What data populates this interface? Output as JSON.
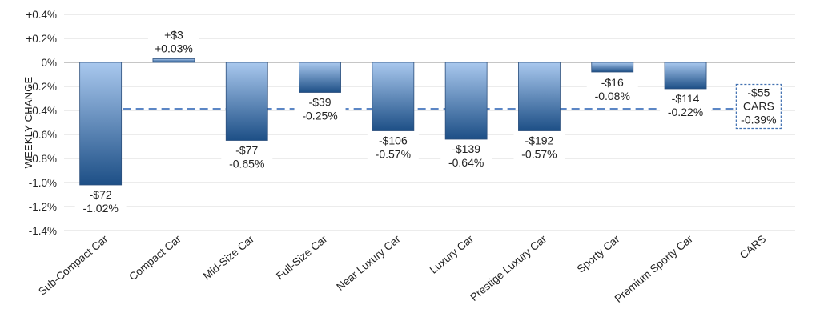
{
  "chart_data": {
    "type": "bar",
    "title": "",
    "xlabel": "",
    "ylabel": "WEEKLY CHANGE",
    "ylim": [
      -1.4,
      0.4
    ],
    "yticks": [
      0.4,
      0.2,
      0,
      -0.2,
      -0.4,
      -0.6,
      -0.8,
      -1.0,
      -1.2,
      -1.4
    ],
    "ytick_labels": [
      "+0.4%",
      "+0.2%",
      "0%",
      "-0.2%",
      "-0.4%",
      "-0.6%",
      "-0.8%",
      "-1.0%",
      "-1.2%",
      "-1.4%"
    ],
    "grid": true,
    "categories": [
      "Sub-Compact Car",
      "Compact Car",
      "Mid-Size Car",
      "Full-Size Car",
      "Near Luxury Car",
      "Luxury Car",
      "Prestige Luxury Car",
      "Sporty Car",
      "Premium Sporty Car",
      "CARS"
    ],
    "values": [
      -1.02,
      0.03,
      -0.65,
      -0.25,
      -0.57,
      -0.64,
      -0.57,
      -0.08,
      -0.22,
      null
    ],
    "dollar_labels": [
      "-$72",
      "+$3",
      "-$77",
      "-$39",
      "-$106",
      "-$139",
      "-$192",
      "-$16",
      "-$114"
    ],
    "percent_labels": [
      "-1.02%",
      "+0.03%",
      "-0.65%",
      "-0.25%",
      "-0.57%",
      "-0.64%",
      "-0.57%",
      "-0.08%",
      "-0.22%"
    ],
    "average": {
      "value": -0.39,
      "dollar_label": "-$55",
      "name_label": "CARS",
      "percent_label": "-0.39%"
    },
    "colors": {
      "bar_top": "#a9c8ee",
      "bar_bottom": "#1d4f86",
      "avg_line": "#5b86c5"
    }
  }
}
